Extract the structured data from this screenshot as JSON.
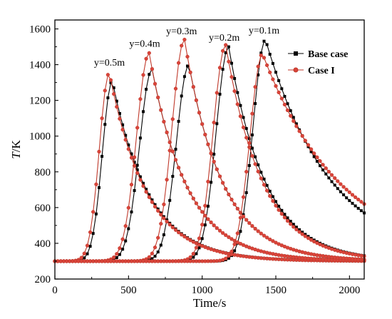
{
  "chart_data": {
    "type": "line",
    "xlabel": "Time/s",
    "ylabel": "T/K",
    "ylabel_italic": "T",
    "ylabel_unit": "/K",
    "xlim": [
      0,
      2100
    ],
    "ylim": [
      200,
      1650
    ],
    "x_ticks": [
      0,
      500,
      1000,
      1500,
      2000
    ],
    "y_ticks": [
      200,
      400,
      600,
      800,
      1000,
      1200,
      1400,
      1600
    ],
    "grid": false,
    "legend_position": "top-right",
    "legend": [
      {
        "label": "Base case",
        "color": "#000000",
        "marker": "square"
      },
      {
        "label": "Case I",
        "color": "#c0392b",
        "marker": "circle"
      }
    ],
    "annotations": [
      "y=0.5m",
      "y=0.4m",
      "y=0.3m",
      "y=0.2m",
      "y=0.1m"
    ],
    "x_sample": [
      0,
      50,
      100,
      150,
      200,
      250,
      300,
      350,
      400,
      450,
      500,
      550,
      600,
      650,
      700,
      750,
      800,
      850,
      900,
      950,
      1000,
      1050,
      1100,
      1150,
      1200,
      1250,
      1300,
      1350,
      1400,
      1450,
      1500,
      1550,
      1600,
      1650,
      1700,
      1750,
      1800,
      1850,
      1900,
      1950,
      2000,
      2050,
      2100
    ],
    "series": [
      {
        "name": "Base case",
        "location": "y=0.5m",
        "peak_x": 390,
        "peak_y": 1310
      },
      {
        "name": "Base case",
        "location": "y=0.4m",
        "peak_x": 660,
        "peak_y": 1375
      },
      {
        "name": "Base case",
        "location": "y=0.3m",
        "peak_x": 910,
        "peak_y": 1400
      },
      {
        "name": "Base case",
        "location": "y=0.2m",
        "peak_x": 1180,
        "peak_y": 1500
      },
      {
        "name": "Base case",
        "location": "y=0.1m",
        "peak_x": 1430,
        "peak_y": 1540,
        "end_y": 570
      },
      {
        "name": "Case I",
        "location": "y=0.5m",
        "peak_x": 370,
        "peak_y": 1355
      },
      {
        "name": "Case I",
        "location": "y=0.4m",
        "peak_x": 640,
        "peak_y": 1465
      },
      {
        "name": "Case I",
        "location": "y=0.3m",
        "peak_x": 880,
        "peak_y": 1540
      },
      {
        "name": "Case I",
        "location": "y=0.2m",
        "peak_x": 1160,
        "peak_y": 1510
      },
      {
        "name": "Case I",
        "location": "y=0.1m",
        "peak_x": 1410,
        "peak_y": 1460,
        "end_y": 620
      }
    ]
  },
  "colors": {
    "base_case": "#000000",
    "case_i": "#c0392b",
    "case_i_fill": "#d9443a"
  }
}
